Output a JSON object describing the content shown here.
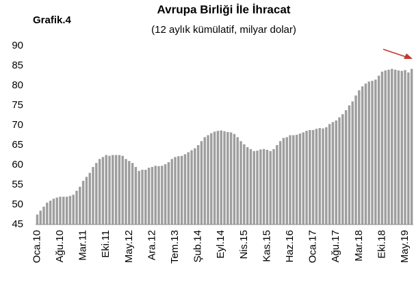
{
  "chart_data": {
    "type": "bar",
    "label": "Grafik.4",
    "title": "Avrupa Birliği İle İhracat",
    "subtitle": "(12 aylık kümülatif, milyar dolar)",
    "categories": [
      "Oca.10",
      null,
      null,
      null,
      null,
      null,
      null,
      "Ağu.10",
      null,
      null,
      null,
      null,
      null,
      null,
      "Mar.11",
      null,
      null,
      null,
      null,
      null,
      null,
      "Eki.11",
      null,
      null,
      null,
      null,
      null,
      null,
      "May.12",
      null,
      null,
      null,
      null,
      null,
      null,
      "Ara.12",
      null,
      null,
      null,
      null,
      null,
      null,
      "Tem.13",
      null,
      null,
      null,
      null,
      null,
      null,
      "Şub.14",
      null,
      null,
      null,
      null,
      null,
      null,
      "Eyl.14",
      null,
      null,
      null,
      null,
      null,
      null,
      "Nis.15",
      null,
      null,
      null,
      null,
      null,
      null,
      "Kas.15",
      null,
      null,
      null,
      null,
      null,
      null,
      "Haz.16",
      null,
      null,
      null,
      null,
      null,
      null,
      "Oca.17",
      null,
      null,
      null,
      null,
      null,
      null,
      "Ağu.17",
      null,
      null,
      null,
      null,
      null,
      null,
      "Mar.18",
      null,
      null,
      null,
      null,
      null,
      null,
      "Eki.18",
      null,
      null,
      null,
      null,
      null,
      null,
      "May.19",
      null,
      null
    ],
    "values": [
      47.5,
      48.5,
      49.5,
      50.5,
      51,
      51.5,
      51.8,
      52,
      52,
      52,
      52.2,
      52.5,
      53.5,
      54.5,
      56,
      57,
      58,
      59.5,
      60.5,
      61.5,
      62,
      62.5,
      62.3,
      62.5,
      62.5,
      62.5,
      62.3,
      61.5,
      61,
      60.5,
      59.5,
      58.5,
      58.8,
      58.8,
      59.3,
      59.5,
      59.8,
      59.7,
      59.8,
      60.2,
      60.7,
      61.5,
      62,
      62.2,
      62.3,
      62.7,
      63.2,
      63.7,
      64.2,
      65,
      66,
      67,
      67.5,
      68,
      68.4,
      68.6,
      68.7,
      68.5,
      68.3,
      68.2,
      67.8,
      67,
      66,
      65.2,
      64.5,
      64,
      63.5,
      63.6,
      63.9,
      64,
      63.8,
      63.5,
      64,
      65,
      66,
      66.8,
      67,
      67.5,
      67.5,
      67.6,
      67.9,
      68.2,
      68.6,
      68.8,
      68.8,
      69.1,
      69.3,
      69.2,
      69.5,
      70.3,
      70.8,
      71.2,
      72,
      72.8,
      73.8,
      75,
      76,
      77.5,
      78.8,
      79.8,
      80.5,
      81,
      81.2,
      81.5,
      82.5,
      83.5,
      83.8,
      84,
      84.2,
      84,
      83.8,
      83.7,
      83.9,
      83.3,
      84.2
    ],
    "color": "#9e9e9e",
    "ylim": [
      45,
      90
    ],
    "yticks": [
      45,
      50,
      55,
      60,
      65,
      70,
      75,
      80,
      85,
      90
    ],
    "grid": false
  }
}
